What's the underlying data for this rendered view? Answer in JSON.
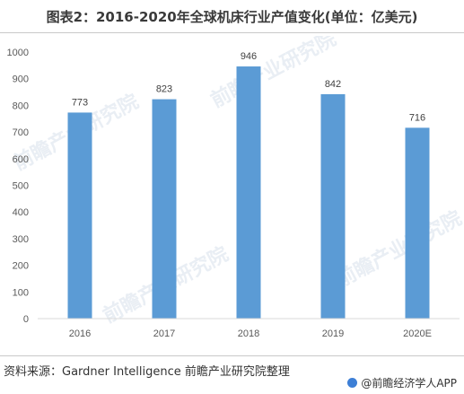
{
  "header": {
    "title": "图表2：2016-2020年全球机床行业产值变化(单位：亿美元)"
  },
  "footer": {
    "source": "资料来源：Gardner Intelligence 前瞻产业研究院整理",
    "credit": "@前瞻经济学人APP"
  },
  "watermark": "前瞻产业研究院",
  "colors": {
    "bar": "#5b9bd5",
    "axis": "#d9d9d9",
    "text": "#595959"
  },
  "chart_data": {
    "type": "bar",
    "categories": [
      "2016",
      "2017",
      "2018",
      "2019",
      "2020E"
    ],
    "values": [
      773,
      823,
      946,
      842,
      716
    ],
    "ylim": [
      0,
      1000
    ],
    "yticks": [
      0,
      100,
      200,
      300,
      400,
      500,
      600,
      700,
      800,
      900,
      1000
    ],
    "grid": false,
    "legend": "none"
  }
}
